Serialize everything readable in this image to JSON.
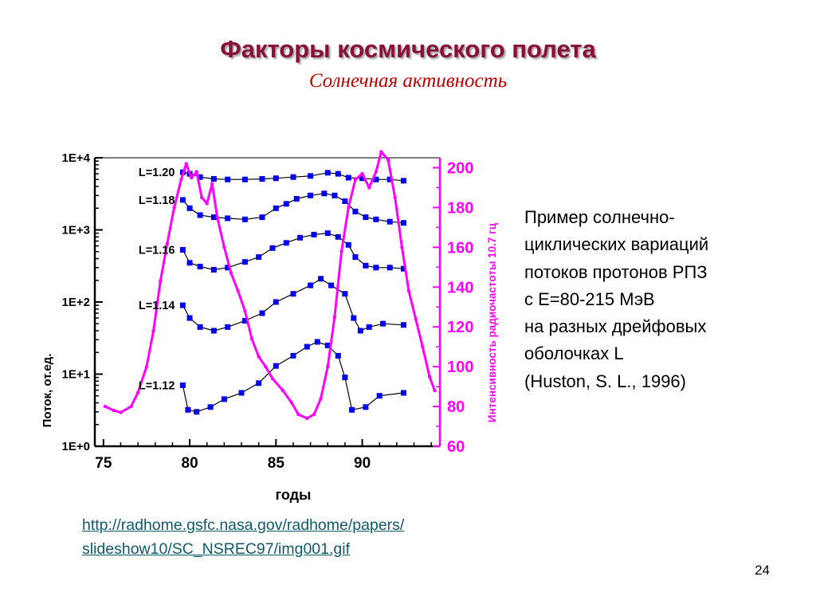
{
  "slide": {
    "title": "Факторы космического полета",
    "subtitle": "Солнечная активность",
    "page_number": "24"
  },
  "description": {
    "lines": [
      "Пример солнечно-",
      "циклических вариаций",
      "потоков протонов РПЗ",
      "с Е=80-215 МэВ",
      "на разных дрейфовых",
      "оболочках L",
      "(Huston, S. L., 1996)"
    ]
  },
  "source_link": {
    "line1": "http://radhome.gsfc.nasa.gov/radhome/papers/",
    "line2": "slideshow10/SC_NSREC97/img001.gif"
  },
  "colors": {
    "proton": "#0000ee",
    "solar": "#ff00ff",
    "title": "#8a0f3a",
    "subtitle": "#c00000",
    "link": "#0e5a6b"
  },
  "chart_data": {
    "type": "line",
    "xlabel": "годы",
    "ylabel": "Поток, от.ед.",
    "ylabel_right": "Интенсивность радиочастоты 10.7 гц",
    "xlim": [
      74.5,
      94.5
    ],
    "ylim": [
      1,
      10000
    ],
    "yscale": "log",
    "ylim_right": [
      60,
      205
    ],
    "x_ticks": [
      "75",
      "80",
      "85",
      "90"
    ],
    "y_ticks": [
      "1E+0",
      "1E+1",
      "1E+2",
      "1E+3",
      "1E+4"
    ],
    "y_ticks_right": [
      "60",
      "80",
      "100",
      "120",
      "140",
      "160",
      "180",
      "200"
    ],
    "series": [
      {
        "name": "L=1.20",
        "axis": "left",
        "color": "#0000ee",
        "points": [
          [
            79.6,
            6300
          ],
          [
            80.0,
            6000
          ],
          [
            80.6,
            5400
          ],
          [
            81.4,
            5100
          ],
          [
            82.2,
            5000
          ],
          [
            83.2,
            5000
          ],
          [
            84.2,
            5100
          ],
          [
            85.0,
            5200
          ],
          [
            86.0,
            5400
          ],
          [
            87.0,
            5600
          ],
          [
            88.0,
            6200
          ],
          [
            88.6,
            6000
          ],
          [
            89.2,
            5300
          ],
          [
            90.0,
            5200
          ],
          [
            90.8,
            5000
          ],
          [
            91.6,
            5000
          ],
          [
            92.4,
            4800
          ]
        ]
      },
      {
        "name": "L=1.18",
        "axis": "left",
        "color": "#0000ee",
        "points": [
          [
            79.6,
            2600
          ],
          [
            80.0,
            2000
          ],
          [
            80.6,
            1600
          ],
          [
            81.4,
            1500
          ],
          [
            82.2,
            1450
          ],
          [
            83.2,
            1400
          ],
          [
            84.2,
            1500
          ],
          [
            85.0,
            2000
          ],
          [
            85.6,
            2300
          ],
          [
            86.2,
            2700
          ],
          [
            87.0,
            3000
          ],
          [
            87.8,
            3200
          ],
          [
            88.4,
            3000
          ],
          [
            89.0,
            2500
          ],
          [
            89.6,
            1800
          ],
          [
            90.2,
            1500
          ],
          [
            90.8,
            1400
          ],
          [
            91.6,
            1300
          ],
          [
            92.4,
            1250
          ]
        ]
      },
      {
        "name": "L=1.16",
        "axis": "left",
        "color": "#0000ee",
        "points": [
          [
            79.6,
            530
          ],
          [
            80.0,
            350
          ],
          [
            80.6,
            310
          ],
          [
            81.4,
            280
          ],
          [
            82.2,
            300
          ],
          [
            83.2,
            360
          ],
          [
            84.0,
            420
          ],
          [
            84.8,
            560
          ],
          [
            85.6,
            660
          ],
          [
            86.4,
            780
          ],
          [
            87.2,
            860
          ],
          [
            88.0,
            900
          ],
          [
            88.6,
            800
          ],
          [
            89.2,
            620
          ],
          [
            89.6,
            420
          ],
          [
            90.2,
            320
          ],
          [
            90.8,
            300
          ],
          [
            91.6,
            300
          ],
          [
            92.4,
            290
          ]
        ]
      },
      {
        "name": "L=1.14",
        "axis": "left",
        "color": "#0000ee",
        "points": [
          [
            79.6,
            90
          ],
          [
            80.0,
            60
          ],
          [
            80.6,
            45
          ],
          [
            81.4,
            40
          ],
          [
            82.2,
            45
          ],
          [
            83.2,
            55
          ],
          [
            84.2,
            70
          ],
          [
            85.0,
            100
          ],
          [
            86.0,
            130
          ],
          [
            87.0,
            170
          ],
          [
            87.6,
            210
          ],
          [
            88.2,
            170
          ],
          [
            89.0,
            130
          ],
          [
            89.5,
            60
          ],
          [
            89.9,
            40
          ],
          [
            90.4,
            45
          ],
          [
            91.2,
            50
          ],
          [
            92.4,
            48
          ]
        ]
      },
      {
        "name": "L=1.12",
        "axis": "left",
        "color": "#0000ee",
        "points": [
          [
            79.6,
            7
          ],
          [
            79.9,
            3.2
          ],
          [
            80.4,
            3
          ],
          [
            81.2,
            3.5
          ],
          [
            82.0,
            4.5
          ],
          [
            83.0,
            5.5
          ],
          [
            84.0,
            7.5
          ],
          [
            85.0,
            13
          ],
          [
            86.0,
            18
          ],
          [
            86.8,
            24
          ],
          [
            87.4,
            28
          ],
          [
            88.0,
            25
          ],
          [
            88.6,
            18
          ],
          [
            89.0,
            9
          ],
          [
            89.4,
            3.2
          ],
          [
            90.2,
            3.5
          ],
          [
            91.0,
            5
          ],
          [
            92.4,
            5.5
          ]
        ]
      },
      {
        "name": "",
        "axis": "right",
        "color": "#ff00ff",
        "points": [
          [
            75.1,
            80
          ],
          [
            75.6,
            78
          ],
          [
            76.0,
            77
          ],
          [
            76.6,
            80
          ],
          [
            77.0,
            87
          ],
          [
            77.5,
            100
          ],
          [
            77.9,
            118
          ],
          [
            78.3,
            143
          ],
          [
            78.7,
            162
          ],
          [
            79.1,
            180
          ],
          [
            79.5,
            194
          ],
          [
            79.8,
            202
          ],
          [
            80.1,
            195
          ],
          [
            80.4,
            198
          ],
          [
            80.7,
            185
          ],
          [
            81.0,
            182
          ],
          [
            81.3,
            192
          ],
          [
            81.6,
            175
          ],
          [
            82.0,
            160
          ],
          [
            82.4,
            147
          ],
          [
            82.8,
            138
          ],
          [
            83.2,
            128
          ],
          [
            83.6,
            114
          ],
          [
            84.0,
            105
          ],
          [
            84.4,
            100
          ],
          [
            84.8,
            94
          ],
          [
            85.4,
            88
          ],
          [
            85.9,
            82
          ],
          [
            86.3,
            76
          ],
          [
            86.8,
            74
          ],
          [
            87.2,
            76
          ],
          [
            87.6,
            84
          ],
          [
            88.0,
            100
          ],
          [
            88.4,
            125
          ],
          [
            88.8,
            158
          ],
          [
            89.2,
            180
          ],
          [
            89.6,
            194
          ],
          [
            90.0,
            197
          ],
          [
            90.4,
            190
          ],
          [
            90.8,
            198
          ],
          [
            91.1,
            208
          ],
          [
            91.5,
            204
          ],
          [
            91.9,
            185
          ],
          [
            92.3,
            160
          ],
          [
            92.7,
            138
          ],
          [
            93.1,
            124
          ],
          [
            93.5,
            110
          ],
          [
            93.9,
            95
          ],
          [
            94.2,
            88
          ]
        ]
      }
    ]
  }
}
